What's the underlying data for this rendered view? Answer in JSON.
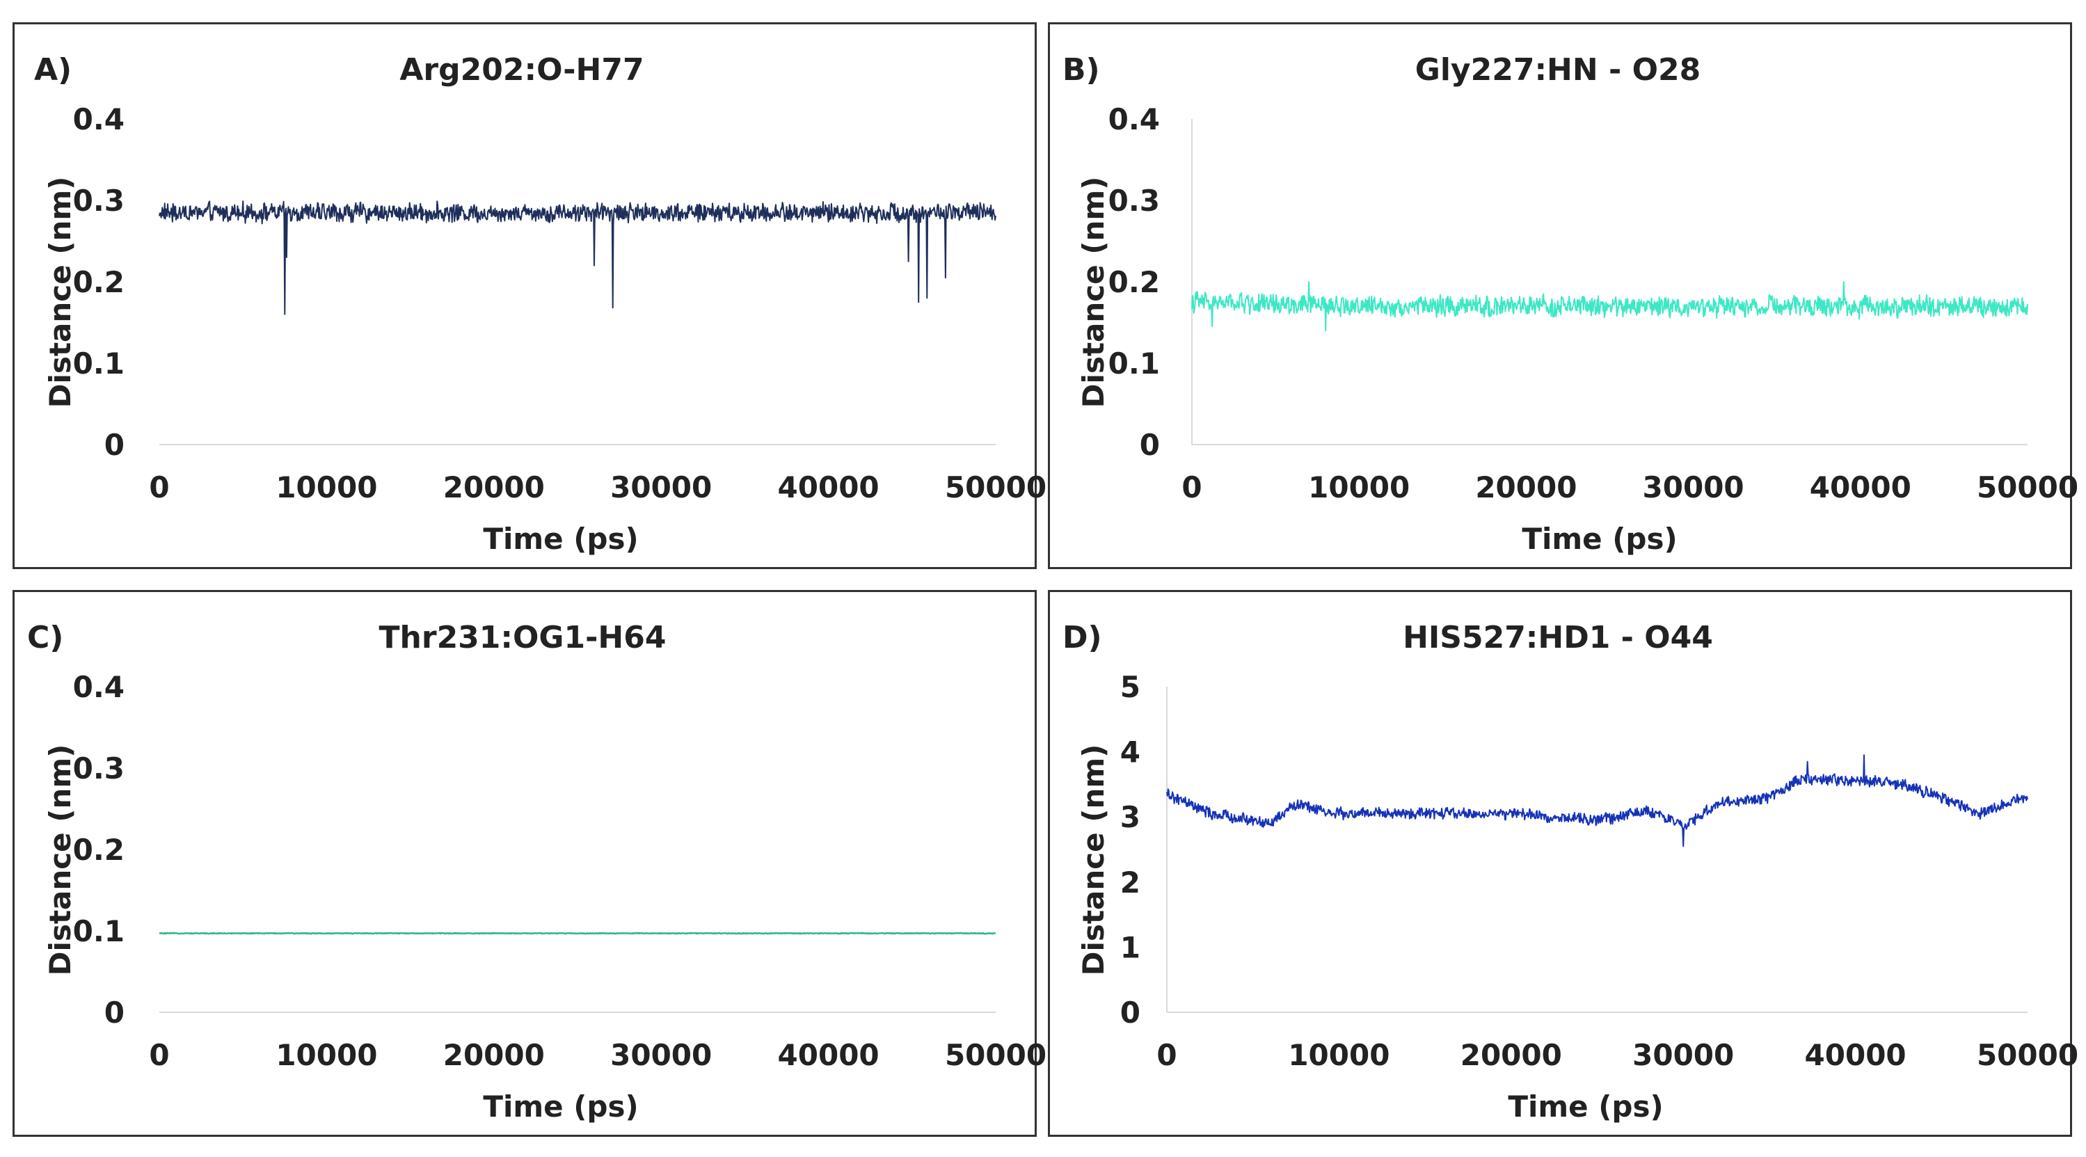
{
  "colors": {
    "axis": "#d9d9d9",
    "text": "#222222",
    "border": "#333333"
  },
  "chart_data": [
    {
      "type": "line",
      "panel_label": "A)",
      "title": "Arg202:O-H77",
      "xlabel": "Time (ps)",
      "ylabel": "Distance (nm)",
      "xlim": [
        0,
        50000
      ],
      "ylim": [
        0,
        0.4
      ],
      "x_ticks": [
        "0",
        "10000",
        "20000",
        "30000",
        "40000",
        "50000"
      ],
      "y_ticks": [
        "0",
        "0.1",
        "0.2",
        "0.3",
        "0.4"
      ],
      "series": [
        {
          "name": "Arg202:O-H77",
          "color": "#1f2f5c",
          "baseline": 0.285,
          "noise": 0.012,
          "trend": [
            [
              0,
              0.285
            ],
            [
              50000,
              0.285
            ]
          ],
          "spikes": [
            [
              7500,
              0.16
            ],
            [
              7600,
              0.23
            ],
            [
              26000,
              0.22
            ],
            [
              27100,
              0.168
            ],
            [
              44800,
              0.225
            ],
            [
              45400,
              0.175
            ],
            [
              45900,
              0.18
            ],
            [
              47000,
              0.205
            ]
          ]
        }
      ]
    },
    {
      "type": "line",
      "panel_label": "B)",
      "title": "Gly227:HN - O28",
      "xlabel": "Time (ps)",
      "ylabel": "Distance (nm)",
      "xlim": [
        0,
        50000
      ],
      "ylim": [
        0,
        0.4
      ],
      "x_ticks": [
        "0",
        "10000",
        "20000",
        "30000",
        "40000",
        "50000"
      ],
      "y_ticks": [
        "0",
        "0.1",
        "0.2",
        "0.3",
        "0.4"
      ],
      "series": [
        {
          "name": "Gly227:HN - O28",
          "color": "#3de8c4",
          "baseline": 0.17,
          "noise": 0.013,
          "trend": [
            [
              0,
              0.175
            ],
            [
              10000,
              0.17
            ],
            [
              50000,
              0.17
            ]
          ],
          "spikes": [
            [
              1200,
              0.145
            ],
            [
              8000,
              0.14
            ],
            [
              7000,
              0.2
            ],
            [
              39000,
              0.2
            ]
          ]
        }
      ]
    },
    {
      "type": "line",
      "panel_label": "C)",
      "title": "Thr231:OG1-H64",
      "xlabel": "Time (ps)",
      "ylabel": "Distance (nm)",
      "xlim": [
        0,
        50000
      ],
      "ylim": [
        0,
        0.4
      ],
      "x_ticks": [
        "0",
        "10000",
        "20000",
        "30000",
        "40000",
        "50000"
      ],
      "y_ticks": [
        "0",
        "0.1",
        "0.2",
        "0.3",
        "0.4"
      ],
      "series": [
        {
          "name": "Thr231:OG1-H64",
          "color": "#2db88e",
          "baseline": 0.097,
          "noise": 0.0005,
          "trend": [
            [
              0,
              0.097
            ],
            [
              50000,
              0.097
            ]
          ],
          "spikes": []
        }
      ]
    },
    {
      "type": "line",
      "panel_label": "D)",
      "title": "HIS527:HD1 - O44",
      "xlabel": "Time (ps)",
      "ylabel": "Distance (nm)",
      "xlim": [
        0,
        50000
      ],
      "ylim": [
        0,
        5
      ],
      "x_ticks": [
        "0",
        "10000",
        "20000",
        "30000",
        "40000",
        "50000"
      ],
      "y_ticks": [
        "0",
        "1",
        "2",
        "3",
        "4",
        "5"
      ],
      "series": [
        {
          "name": "HIS527:HD1 - O44",
          "color": "#1533b8",
          "baseline": 3.1,
          "noise": 0.09,
          "trend": [
            [
              0,
              3.35
            ],
            [
              2500,
              3.05
            ],
            [
              6000,
              2.9
            ],
            [
              7500,
              3.2
            ],
            [
              10000,
              3.05
            ],
            [
              20000,
              3.05
            ],
            [
              25000,
              2.95
            ],
            [
              28000,
              3.1
            ],
            [
              30000,
              2.85
            ],
            [
              32000,
              3.2
            ],
            [
              35000,
              3.3
            ],
            [
              37000,
              3.6
            ],
            [
              40000,
              3.55
            ],
            [
              42000,
              3.55
            ],
            [
              45000,
              3.3
            ],
            [
              47000,
              3.05
            ],
            [
              50000,
              3.3
            ]
          ],
          "spikes": [
            [
              30000,
              2.55
            ],
            [
              40500,
              3.95
            ],
            [
              37200,
              3.85
            ]
          ]
        }
      ]
    }
  ]
}
